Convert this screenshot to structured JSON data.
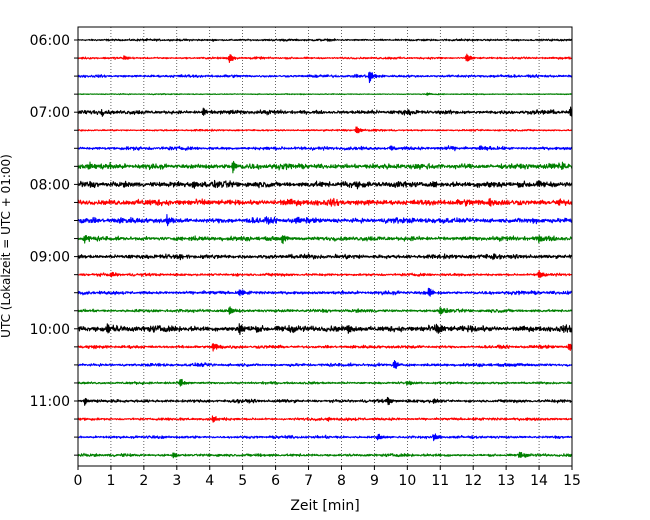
{
  "chart_data": {
    "type": "line",
    "title": "",
    "xlabel": "Zeit  [min]",
    "ylabel": "UTC (Lokalzeit = UTC + 01:00)",
    "xlim": [
      0,
      15
    ],
    "x_ticks": [
      "0",
      "1",
      "2",
      "3",
      "4",
      "5",
      "6",
      "7",
      "8",
      "9",
      "10",
      "11",
      "12",
      "13",
      "14",
      "15"
    ],
    "y_tick_labels": [
      "06:00",
      "07:00",
      "08:00",
      "09:00",
      "10:00",
      "11:00"
    ],
    "grid": "vertical dotted",
    "rows_per_hour": 4,
    "row_minutes": 15,
    "trace_colors": [
      "#000000",
      "#ff0000",
      "#0000ff",
      "#008000"
    ],
    "traces": [
      {
        "start": "06:00",
        "color": "#000000",
        "noise": 0.6,
        "events": [
          {
            "t": 4.1,
            "amp": 0.6
          },
          {
            "t": 13.3,
            "amp": 0.5
          }
        ]
      },
      {
        "start": "06:15",
        "color": "#ff0000",
        "noise": 0.6,
        "events": [
          {
            "t": 1.4,
            "amp": 1.5
          },
          {
            "t": 4.6,
            "amp": 3.5
          },
          {
            "t": 11.8,
            "amp": 3.0
          }
        ]
      },
      {
        "start": "06:30",
        "color": "#0000ff",
        "noise": 0.8,
        "events": [
          {
            "t": 8.85,
            "amp": 4.5
          },
          {
            "t": 7.2,
            "amp": 0.8
          }
        ]
      },
      {
        "start": "06:45",
        "color": "#008000",
        "noise": 0.3,
        "events": [
          {
            "t": 10.6,
            "amp": 1.0
          }
        ]
      },
      {
        "start": "07:00",
        "color": "#000000",
        "noise": 1.2,
        "events": [
          {
            "t": 0.7,
            "amp": 2.0
          },
          {
            "t": 3.8,
            "amp": 3.0
          },
          {
            "t": 14.95,
            "amp": 4.5
          }
        ]
      },
      {
        "start": "07:15",
        "color": "#ff0000",
        "noise": 0.5,
        "events": [
          {
            "t": 8.45,
            "amp": 3.0
          },
          {
            "t": 9.0,
            "amp": 1.0
          }
        ]
      },
      {
        "start": "07:30",
        "color": "#0000ff",
        "noise": 1.0,
        "events": [
          {
            "t": 9.5,
            "amp": 2.0
          },
          {
            "t": 12.2,
            "amp": 1.5
          }
        ]
      },
      {
        "start": "07:45",
        "color": "#008000",
        "noise": 1.6,
        "events": [
          {
            "t": 0.3,
            "amp": 3.0
          },
          {
            "t": 4.7,
            "amp": 4.0
          },
          {
            "t": 14.7,
            "amp": 3.0
          }
        ]
      },
      {
        "start": "08:00",
        "color": "#000000",
        "noise": 1.8,
        "events": [
          {
            "t": 3.5,
            "amp": 3.5
          },
          {
            "t": 10.8,
            "amp": 3.5
          }
        ]
      },
      {
        "start": "08:15",
        "color": "#ff0000",
        "noise": 1.8,
        "events": [
          {
            "t": 12.5,
            "amp": 3.0
          },
          {
            "t": 14.6,
            "amp": 2.0
          }
        ]
      },
      {
        "start": "08:30",
        "color": "#0000ff",
        "noise": 1.6,
        "events": [
          {
            "t": 2.7,
            "amp": 4.0
          },
          {
            "t": 6.6,
            "amp": 2.5
          }
        ]
      },
      {
        "start": "08:45",
        "color": "#008000",
        "noise": 1.3,
        "events": [
          {
            "t": 0.2,
            "amp": 3.0
          },
          {
            "t": 6.2,
            "amp": 3.5
          },
          {
            "t": 14.0,
            "amp": 3.0
          }
        ]
      },
      {
        "start": "09:00",
        "color": "#000000",
        "noise": 1.3,
        "events": [
          {
            "t": 3.1,
            "amp": 3.0
          },
          {
            "t": 12.6,
            "amp": 2.0
          }
        ]
      },
      {
        "start": "09:15",
        "color": "#ff0000",
        "noise": 0.8,
        "events": [
          {
            "t": 1.0,
            "amp": 2.0
          },
          {
            "t": 14.0,
            "amp": 3.0
          }
        ]
      },
      {
        "start": "09:30",
        "color": "#0000ff",
        "noise": 1.0,
        "events": [
          {
            "t": 10.65,
            "amp": 3.5
          },
          {
            "t": 4.9,
            "amp": 2.5
          }
        ]
      },
      {
        "start": "09:45",
        "color": "#008000",
        "noise": 0.9,
        "events": [
          {
            "t": 4.6,
            "amp": 3.0
          },
          {
            "t": 11.0,
            "amp": 3.0
          }
        ]
      },
      {
        "start": "10:00",
        "color": "#000000",
        "noise": 1.8,
        "events": [
          {
            "t": 4.9,
            "amp": 4.0
          },
          {
            "t": 8.2,
            "amp": 4.0
          },
          {
            "t": 10.9,
            "amp": 3.5
          },
          {
            "t": 0.9,
            "amp": 3.5
          }
        ]
      },
      {
        "start": "10:15",
        "color": "#ff0000",
        "noise": 0.9,
        "events": [
          {
            "t": 4.1,
            "amp": 3.0
          },
          {
            "t": 14.9,
            "amp": 3.0
          }
        ]
      },
      {
        "start": "10:30",
        "color": "#0000ff",
        "noise": 0.9,
        "events": [
          {
            "t": 9.6,
            "amp": 3.5
          }
        ]
      },
      {
        "start": "10:45",
        "color": "#008000",
        "noise": 0.7,
        "events": [
          {
            "t": 3.1,
            "amp": 3.0
          },
          {
            "t": 10.0,
            "amp": 1.5
          }
        ]
      },
      {
        "start": "11:00",
        "color": "#000000",
        "noise": 0.9,
        "events": [
          {
            "t": 0.2,
            "amp": 2.5
          },
          {
            "t": 9.4,
            "amp": 2.5
          },
          {
            "t": 10.8,
            "amp": 2.0
          }
        ]
      },
      {
        "start": "11:15",
        "color": "#ff0000",
        "noise": 0.8,
        "events": [
          {
            "t": 4.1,
            "amp": 2.5
          },
          {
            "t": 7.6,
            "amp": 1.5
          }
        ]
      },
      {
        "start": "11:30",
        "color": "#0000ff",
        "noise": 0.8,
        "events": [
          {
            "t": 9.1,
            "amp": 2.5
          },
          {
            "t": 10.8,
            "amp": 2.5
          }
        ]
      },
      {
        "start": "11:45",
        "color": "#008000",
        "noise": 0.8,
        "events": [
          {
            "t": 2.9,
            "amp": 2.0
          },
          {
            "t": 13.4,
            "amp": 2.5
          }
        ]
      }
    ]
  }
}
